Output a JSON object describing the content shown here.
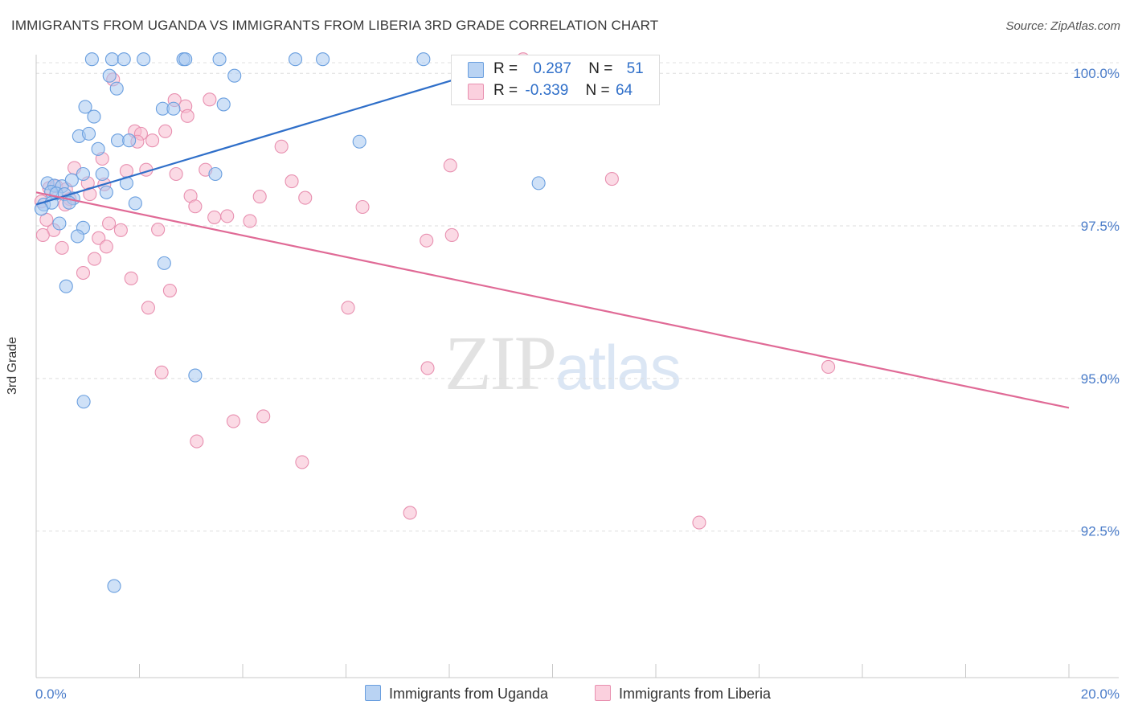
{
  "title": "IMMIGRANTS FROM UGANDA VS IMMIGRANTS FROM LIBERIA 3RD GRADE CORRELATION CHART",
  "source": "Source: ZipAtlas.com",
  "watermark": {
    "part1": "ZIP",
    "part2": "atlas"
  },
  "colors": {
    "uganda_fill": "#a8c8f0",
    "uganda_stroke": "#6a9fdf",
    "uganda_line": "#2f6fc9",
    "liberia_fill": "#f7bcd0",
    "liberia_stroke": "#e890b0",
    "liberia_line": "#e06a96",
    "value_text": "#2f6fc9"
  },
  "legend": {
    "rows": [
      {
        "r_label": "R =",
        "r_value": "0.287",
        "n_label": "N =",
        "n_value": "51"
      },
      {
        "r_label": "R =",
        "r_value": "-0.339",
        "n_label": "N =",
        "n_value": "64"
      }
    ]
  },
  "chart_data": {
    "type": "scatter",
    "title": "IMMIGRANTS FROM UGANDA VS IMMIGRANTS FROM LIBERIA 3RD GRADE CORRELATION CHART",
    "xlabel": "",
    "ylabel": "3rd Grade",
    "xlim": [
      0,
      20
    ],
    "ylim": [
      90.1,
      100.2
    ],
    "x_tick_labels": [
      "0.0%",
      "20.0%"
    ],
    "y_ticks": [
      100.0,
      97.5,
      95.0,
      92.5
    ],
    "y_tick_labels": [
      "100.0%",
      "97.5%",
      "95.0%",
      "92.5%"
    ],
    "grid": true,
    "series": [
      {
        "name": "Immigrants from Uganda",
        "r": 0.287,
        "n": 51,
        "trend": {
          "x0": 0.0,
          "y0": 97.85,
          "x1": 9.5,
          "y1": 100.25
        },
        "points": [
          [
            1.08,
            100.23
          ],
          [
            1.47,
            100.23
          ],
          [
            1.7,
            100.23
          ],
          [
            2.08,
            100.23
          ],
          [
            2.85,
            100.23
          ],
          [
            2.89,
            100.23
          ],
          [
            3.55,
            100.23
          ],
          [
            5.02,
            100.23
          ],
          [
            5.55,
            100.23
          ],
          [
            7.5,
            100.23
          ],
          [
            1.42,
            99.96
          ],
          [
            3.84,
            99.96
          ],
          [
            1.56,
            99.75
          ],
          [
            0.95,
            99.45
          ],
          [
            2.45,
            99.42
          ],
          [
            2.66,
            99.42
          ],
          [
            3.63,
            99.49
          ],
          [
            1.12,
            99.29
          ],
          [
            0.83,
            98.97
          ],
          [
            1.02,
            99.01
          ],
          [
            1.58,
            98.9
          ],
          [
            1.8,
            98.9
          ],
          [
            6.26,
            98.88
          ],
          [
            1.2,
            98.76
          ],
          [
            0.91,
            98.35
          ],
          [
            1.28,
            98.35
          ],
          [
            3.47,
            98.35
          ],
          [
            0.22,
            98.2
          ],
          [
            0.35,
            98.16
          ],
          [
            0.5,
            98.15
          ],
          [
            0.69,
            98.25
          ],
          [
            1.75,
            98.2
          ],
          [
            9.73,
            98.2
          ],
          [
            0.29,
            98.06
          ],
          [
            0.39,
            98.03
          ],
          [
            0.55,
            98.02
          ],
          [
            0.72,
            97.95
          ],
          [
            1.36,
            98.05
          ],
          [
            0.15,
            97.85
          ],
          [
            0.3,
            97.88
          ],
          [
            0.64,
            97.88
          ],
          [
            1.92,
            97.87
          ],
          [
            0.1,
            97.78
          ],
          [
            0.45,
            97.54
          ],
          [
            0.91,
            97.47
          ],
          [
            0.8,
            97.33
          ],
          [
            2.48,
            96.89
          ],
          [
            0.58,
            96.51
          ],
          [
            3.08,
            95.05
          ],
          [
            0.92,
            94.62
          ],
          [
            1.51,
            91.6
          ]
        ]
      },
      {
        "name": "Immigrants from Liberia",
        "r": -0.339,
        "n": 64,
        "trend": {
          "x0": 0.0,
          "y0": 98.05,
          "x1": 20.0,
          "y1": 94.52
        },
        "points": [
          [
            9.43,
            100.23
          ],
          [
            1.49,
            99.9
          ],
          [
            2.68,
            99.56
          ],
          [
            2.89,
            99.46
          ],
          [
            3.36,
            99.57
          ],
          [
            2.93,
            99.3
          ],
          [
            1.91,
            99.05
          ],
          [
            2.03,
            99.01
          ],
          [
            2.5,
            99.05
          ],
          [
            1.96,
            98.88
          ],
          [
            2.25,
            98.9
          ],
          [
            4.75,
            98.8
          ],
          [
            1.28,
            98.6
          ],
          [
            0.74,
            98.45
          ],
          [
            1.75,
            98.4
          ],
          [
            2.13,
            98.42
          ],
          [
            3.28,
            98.42
          ],
          [
            2.71,
            98.35
          ],
          [
            8.02,
            98.49
          ],
          [
            11.15,
            98.27
          ],
          [
            1.0,
            98.2
          ],
          [
            1.32,
            98.18
          ],
          [
            4.95,
            98.23
          ],
          [
            0.25,
            98.12
          ],
          [
            0.39,
            98.15
          ],
          [
            0.58,
            98.1
          ],
          [
            1.04,
            98.02
          ],
          [
            0.65,
            97.94
          ],
          [
            2.99,
            97.99
          ],
          [
            4.33,
            97.98
          ],
          [
            5.21,
            97.96
          ],
          [
            0.1,
            97.9
          ],
          [
            0.56,
            97.85
          ],
          [
            3.08,
            97.82
          ],
          [
            6.32,
            97.81
          ],
          [
            3.45,
            97.64
          ],
          [
            3.7,
            97.66
          ],
          [
            4.14,
            97.58
          ],
          [
            1.41,
            97.54
          ],
          [
            2.36,
            97.44
          ],
          [
            1.64,
            97.43
          ],
          [
            0.34,
            97.43
          ],
          [
            0.13,
            97.35
          ],
          [
            1.21,
            97.3
          ],
          [
            7.56,
            97.26
          ],
          [
            8.05,
            97.35
          ],
          [
            0.5,
            97.14
          ],
          [
            1.36,
            97.16
          ],
          [
            1.13,
            96.96
          ],
          [
            0.91,
            96.73
          ],
          [
            1.84,
            96.64
          ],
          [
            2.59,
            96.44
          ],
          [
            2.17,
            96.16
          ],
          [
            6.04,
            96.16
          ],
          [
            7.58,
            95.17
          ],
          [
            15.34,
            95.19
          ],
          [
            2.43,
            95.1
          ],
          [
            4.4,
            94.38
          ],
          [
            3.82,
            94.3
          ],
          [
            3.11,
            93.97
          ],
          [
            5.15,
            93.63
          ],
          [
            7.24,
            92.8
          ],
          [
            12.84,
            92.64
          ],
          [
            0.2,
            97.6
          ]
        ]
      }
    ]
  },
  "bottom_legend": {
    "uganda_label": "Immigrants from Uganda",
    "liberia_label": "Immigrants from Liberia"
  }
}
